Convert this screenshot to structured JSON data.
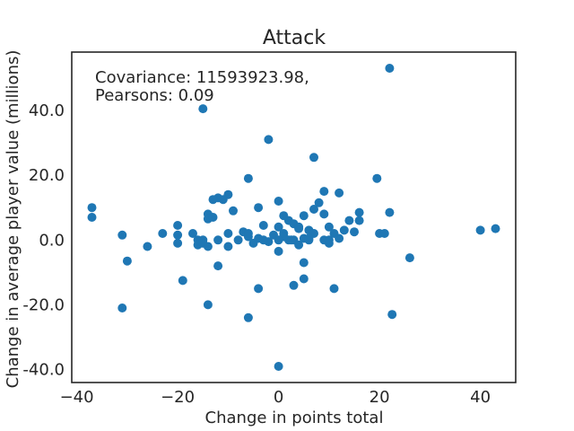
{
  "chart_data": {
    "type": "scatter",
    "title": "Attack",
    "xlabel": "Change in points total",
    "ylabel": "Change in average player value (millions)",
    "xlim": [
      -41,
      47
    ],
    "ylim": [
      -44,
      58
    ],
    "xticks": [
      -40,
      -20,
      0,
      20,
      40
    ],
    "xtick_labels": [
      "−40",
      "−20",
      "0",
      "20",
      "40"
    ],
    "yticks": [
      -40,
      -20,
      0,
      20,
      40
    ],
    "ytick_labels": [
      "-40.0",
      "-20.0",
      "0.0",
      "20.0",
      "40.0"
    ],
    "annotation": [
      "Covariance: 11593923.98,",
      "Pearsons: 0.09"
    ],
    "grid": false,
    "marker_color": "#1f77b4",
    "series": [
      {
        "x": [
          22,
          -15,
          -2,
          7,
          19.5,
          -6,
          -4,
          2,
          9,
          12,
          -12,
          -13,
          -10,
          -37,
          -37,
          -31,
          -30,
          -26,
          -23,
          -20,
          -20,
          -20,
          -17,
          -16,
          -16,
          -15,
          -14,
          -14,
          -13,
          -12,
          -11,
          -10,
          -9,
          -8,
          -7,
          -6,
          -5,
          -4,
          -3,
          -2,
          -1,
          0,
          0,
          1,
          1,
          2,
          3,
          3,
          4,
          4,
          5,
          5,
          6,
          6,
          7,
          7,
          8,
          9,
          9,
          10,
          10,
          11,
          12,
          13,
          14,
          15,
          16,
          16,
          20,
          21,
          22,
          40,
          43,
          -19,
          -12,
          -4,
          5,
          11,
          26,
          5,
          3,
          -31,
          -14,
          -6,
          -15,
          -14,
          22.5,
          0,
          0,
          2.5,
          1,
          -3,
          4,
          -6,
          -10,
          10,
          0,
          6
        ],
        "y": [
          53,
          40.5,
          31,
          25.5,
          19,
          19,
          10,
          6,
          15,
          14.5,
          13,
          12.5,
          14,
          10,
          7,
          1.5,
          -6.5,
          -2,
          2,
          4.5,
          1.5,
          -1,
          2,
          0,
          -1.5,
          0,
          8,
          6.5,
          7,
          0,
          12.5,
          2,
          9,
          0,
          2.5,
          1,
          -1,
          0.5,
          4.5,
          -0.5,
          1.5,
          4,
          12,
          7.5,
          2,
          0,
          5,
          0,
          4,
          -1.5,
          0.5,
          7.5,
          3,
          0,
          9.5,
          2,
          11.5,
          8,
          0,
          4,
          -1,
          2,
          0.5,
          3,
          6,
          2.5,
          8.5,
          6,
          2,
          2,
          8.5,
          3,
          3.5,
          -12.5,
          -8,
          -15,
          -7,
          -15,
          -5.5,
          -12,
          -14,
          -21,
          -20,
          -24,
          -1,
          -2,
          -23,
          -39,
          -3.5,
          0,
          1,
          0,
          3.5,
          2,
          -2,
          0,
          0,
          0.5
        ]
      }
    ]
  }
}
